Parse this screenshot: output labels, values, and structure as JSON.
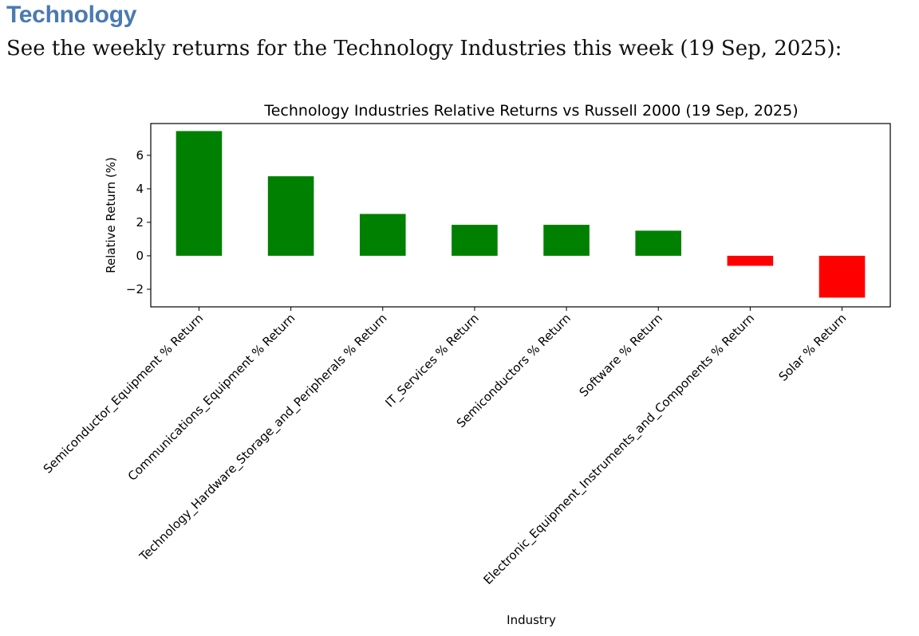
{
  "page": {
    "heading": "Technology",
    "intro": "See the weekly returns for the Technology Industries this week (19 Sep, 2025):"
  },
  "chart_data": {
    "type": "bar",
    "title": "Technology Industries Relative Returns vs Russell 2000 (19 Sep, 2025)",
    "xlabel": "Industry",
    "ylabel": "Relative Return (%)",
    "ylim": [
      -3.05,
      7.9
    ],
    "yticks": [
      -2,
      0,
      2,
      4,
      6
    ],
    "ytick_labels": [
      "−2",
      "0",
      "2",
      "4",
      "6"
    ],
    "categories": [
      "Semiconductor_Equipment % Return",
      "Communications_Equipment % Return",
      "Technology_Hardware_Storage_and_Peripherals % Return",
      "IT_Services % Return",
      "Semiconductors % Return",
      "Software % Return",
      "Electronic_Equipment_Instruments_and_Components % Return",
      "Solar % Return"
    ],
    "values": [
      7.45,
      4.75,
      2.5,
      1.85,
      1.85,
      1.5,
      -0.6,
      -2.5
    ],
    "colors": {
      "positive": "#008000",
      "negative": "#ff0000"
    },
    "grid": false
  }
}
